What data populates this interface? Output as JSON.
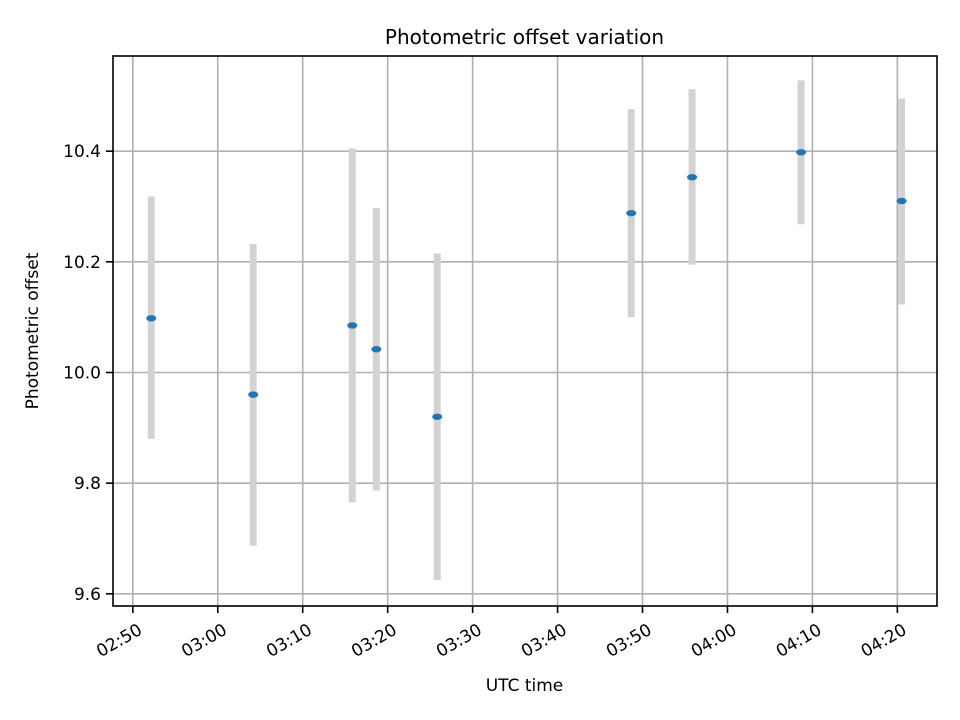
{
  "chart_data": {
    "type": "scatter",
    "title": "Photometric offset variation",
    "xlabel": "UTC time",
    "ylabel": "Photometric offset",
    "x_ticks": [
      "02:50",
      "03:00",
      "03:10",
      "03:20",
      "03:30",
      "03:40",
      "03:50",
      "04:00",
      "04:10",
      "04:20"
    ],
    "y_ticks": [
      "9.6",
      "9.8",
      "10.0",
      "10.2",
      "10.4"
    ],
    "xlim": [
      "02:47:40",
      "04:24:40"
    ],
    "ylim": [
      9.578,
      10.572
    ],
    "grid": true,
    "point_color": "#1f77b4",
    "errorbar_color": "#d3d3d3",
    "points": [
      {
        "x": "02:52:10",
        "y": 10.098,
        "low": 9.88,
        "high": 10.318
      },
      {
        "x": "03:04:10",
        "y": 9.96,
        "low": 9.687,
        "high": 10.232
      },
      {
        "x": "03:15:50",
        "y": 10.085,
        "low": 9.765,
        "high": 10.405
      },
      {
        "x": "03:18:40",
        "y": 10.042,
        "low": 9.787,
        "high": 10.297
      },
      {
        "x": "03:25:50",
        "y": 9.92,
        "low": 9.625,
        "high": 10.215
      },
      {
        "x": "03:48:40",
        "y": 10.288,
        "low": 10.1,
        "high": 10.476
      },
      {
        "x": "03:55:50",
        "y": 10.353,
        "low": 10.195,
        "high": 10.512
      },
      {
        "x": "04:08:40",
        "y": 10.398,
        "low": 10.268,
        "high": 10.528
      },
      {
        "x": "04:20:30",
        "y": 10.31,
        "low": 10.123,
        "high": 10.495
      }
    ]
  }
}
